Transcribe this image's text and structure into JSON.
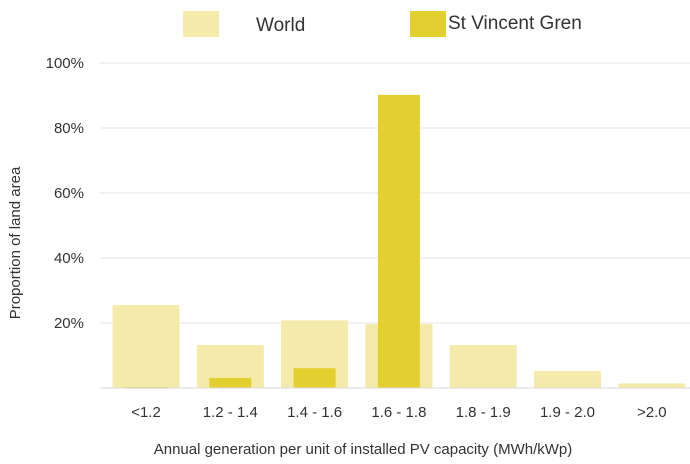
{
  "chart_data": {
    "type": "bar",
    "categories": [
      "<1.2",
      "1.2 - 1.4",
      "1.4 - 1.6",
      "1.6 - 1.8",
      "1.8 - 1.9",
      "1.9 - 2.0",
      ">2.0"
    ],
    "series": [
      {
        "name": "World",
        "values": [
          25.5,
          13.2,
          20.8,
          19.7,
          13.2,
          5.2,
          1.4
        ],
        "color": "#f4eaa9"
      },
      {
        "name": "St Vincent Gren",
        "values": [
          0.3,
          3.1,
          6.1,
          90.2,
          0,
          0,
          0
        ],
        "color": "#e3cf2f"
      }
    ],
    "ylim": [
      0,
      100
    ],
    "yticks": [
      20,
      40,
      60,
      80,
      100
    ],
    "ytick_labels": [
      "20%",
      "40%",
      "60%",
      "80%",
      "100%"
    ],
    "xlabel": "Annual generation per unit of installed PV capacity (MWh/kWp)",
    "ylabel": "Proportion of land area",
    "legend_position": "top",
    "grid": true,
    "grid_color": "#e6e6e6"
  }
}
